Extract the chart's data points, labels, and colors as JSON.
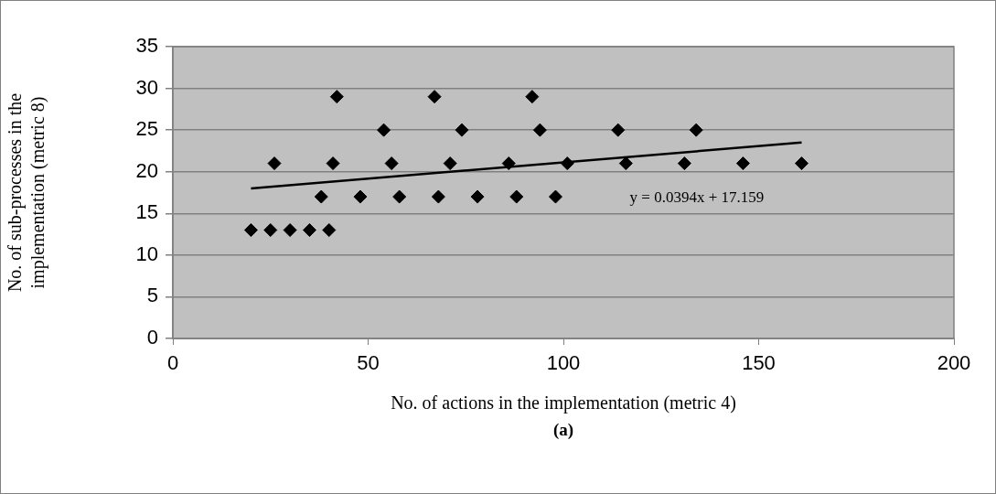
{
  "chart_data": {
    "type": "scatter",
    "xlabel": "No. of actions in the implementation (metric 4)",
    "ylabel": "No. of sub-processes in the\nimplementation (metric 8)",
    "xlim": [
      0,
      200
    ],
    "xticks": [
      0,
      50,
      100,
      150,
      200
    ],
    "ylim": [
      0,
      35
    ],
    "yticks": [
      0,
      5,
      10,
      15,
      20,
      25,
      30,
      35
    ],
    "grid": "y",
    "legend": false,
    "marker": "diamond",
    "series": [
      {
        "color": "#000000",
        "x": [
          20,
          25,
          30,
          35,
          40,
          38,
          48,
          58,
          68,
          78,
          88,
          98,
          26,
          41,
          56,
          71,
          86,
          101,
          116,
          131,
          146,
          161,
          54,
          74,
          94,
          114,
          134,
          42,
          67,
          92
        ],
        "values": [
          13,
          13,
          13,
          13,
          13,
          17,
          17,
          17,
          17,
          17,
          17,
          17,
          21,
          21,
          21,
          21,
          21,
          21,
          21,
          21,
          21,
          21,
          25,
          25,
          25,
          25,
          25,
          29,
          29,
          29
        ]
      },
      {
        "type": "line",
        "color": "#000000",
        "line_style": "solid",
        "marker": "none",
        "x": [
          20,
          161
        ],
        "values": [
          18,
          23.5
        ]
      }
    ],
    "annotations": [
      "y = 0.0394x + 17.159",
      "(a)"
    ]
  }
}
